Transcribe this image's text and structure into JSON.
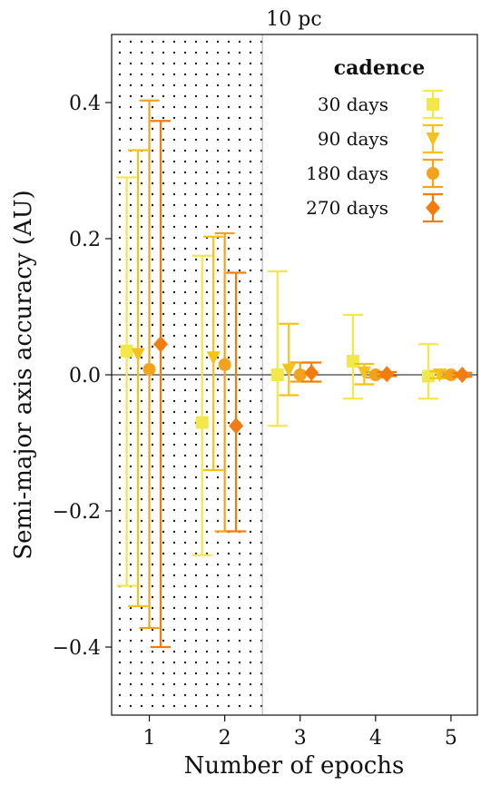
{
  "chart_data": {
    "type": "scatter",
    "title": "10 pc",
    "xlabel": "Number of epochs",
    "ylabel": "Semi-major axis accuracy (AU)",
    "xlim": [
      0.5,
      5.35
    ],
    "ylim": [
      -0.5,
      0.5
    ],
    "xticks": [
      1,
      2,
      3,
      4,
      5
    ],
    "yticks": [
      -0.4,
      -0.2,
      0.0,
      0.2,
      0.4
    ],
    "ytick_labels": [
      "−0.4",
      "−0.2",
      "0.0",
      "0.2",
      "0.4"
    ],
    "grid": false,
    "reference_line_y": 0,
    "shaded_region_x": [
      0.5,
      2.5
    ],
    "legend": {
      "title": "cadence",
      "placement": "top-right"
    },
    "series": [
      {
        "name": "30 days",
        "color": "#f2e84b",
        "marker": "square",
        "x": [
          0.7,
          1.7,
          2.7,
          3.7,
          4.7
        ],
        "y": [
          0.035,
          -0.07,
          0.0,
          0.02,
          -0.002
        ],
        "err_low": [
          0.345,
          0.195,
          0.075,
          0.055,
          0.033
        ],
        "err_high": [
          0.255,
          0.245,
          0.152,
          0.068,
          0.047
        ]
      },
      {
        "name": "90 days",
        "color": "#f4c21a",
        "marker": "triangle-down",
        "x": [
          0.85,
          1.85,
          2.85,
          3.85,
          4.85
        ],
        "y": [
          0.03,
          0.025,
          0.007,
          0.003,
          0.0
        ],
        "err_low": [
          0.37,
          0.165,
          0.037,
          0.017,
          0.005
        ],
        "err_high": [
          0.3,
          0.178,
          0.068,
          0.013,
          0.005
        ]
      },
      {
        "name": "180 days",
        "color": "#f3a21c",
        "marker": "circle",
        "x": [
          1.0,
          2.0,
          3.0,
          4.0,
          5.0
        ],
        "y": [
          0.008,
          0.015,
          0.0,
          0.0,
          0.0
        ],
        "err_low": [
          0.38,
          0.245,
          0.01,
          0.004,
          0.003
        ],
        "err_high": [
          0.395,
          0.193,
          0.018,
          0.004,
          0.003
        ]
      },
      {
        "name": "270 days",
        "color": "#f47c0f",
        "marker": "diamond",
        "x": [
          1.15,
          2.15,
          3.15,
          4.15,
          5.15
        ],
        "y": [
          0.045,
          -0.075,
          0.003,
          0.001,
          0.0
        ],
        "err_low": [
          0.445,
          0.155,
          0.013,
          0.003,
          0.003
        ],
        "err_high": [
          0.328,
          0.225,
          0.015,
          0.003,
          0.003
        ]
      }
    ]
  }
}
